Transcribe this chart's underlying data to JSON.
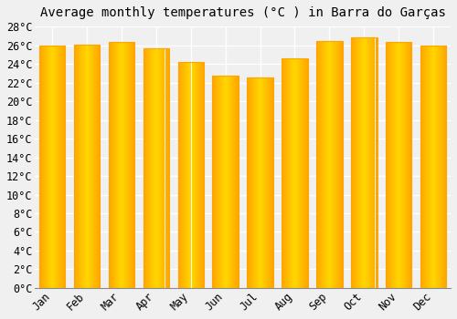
{
  "title": "Average monthly temperatures (°C ) in Barra do Garças",
  "months": [
    "Jan",
    "Feb",
    "Mar",
    "Apr",
    "May",
    "Jun",
    "Jul",
    "Aug",
    "Sep",
    "Oct",
    "Nov",
    "Dec"
  ],
  "values": [
    26.0,
    26.1,
    26.3,
    25.7,
    24.2,
    22.7,
    22.5,
    24.6,
    26.4,
    26.8,
    26.3,
    26.0
  ],
  "bar_color_center": "#FFD700",
  "bar_color_edge": "#FFA500",
  "background_color": "#f0f0f0",
  "plot_bg_color": "#f0f0f0",
  "grid_color": "#ffffff",
  "ylim": [
    0,
    28
  ],
  "ytick_step": 2,
  "title_fontsize": 10,
  "tick_fontsize": 8.5,
  "bar_width": 0.75
}
